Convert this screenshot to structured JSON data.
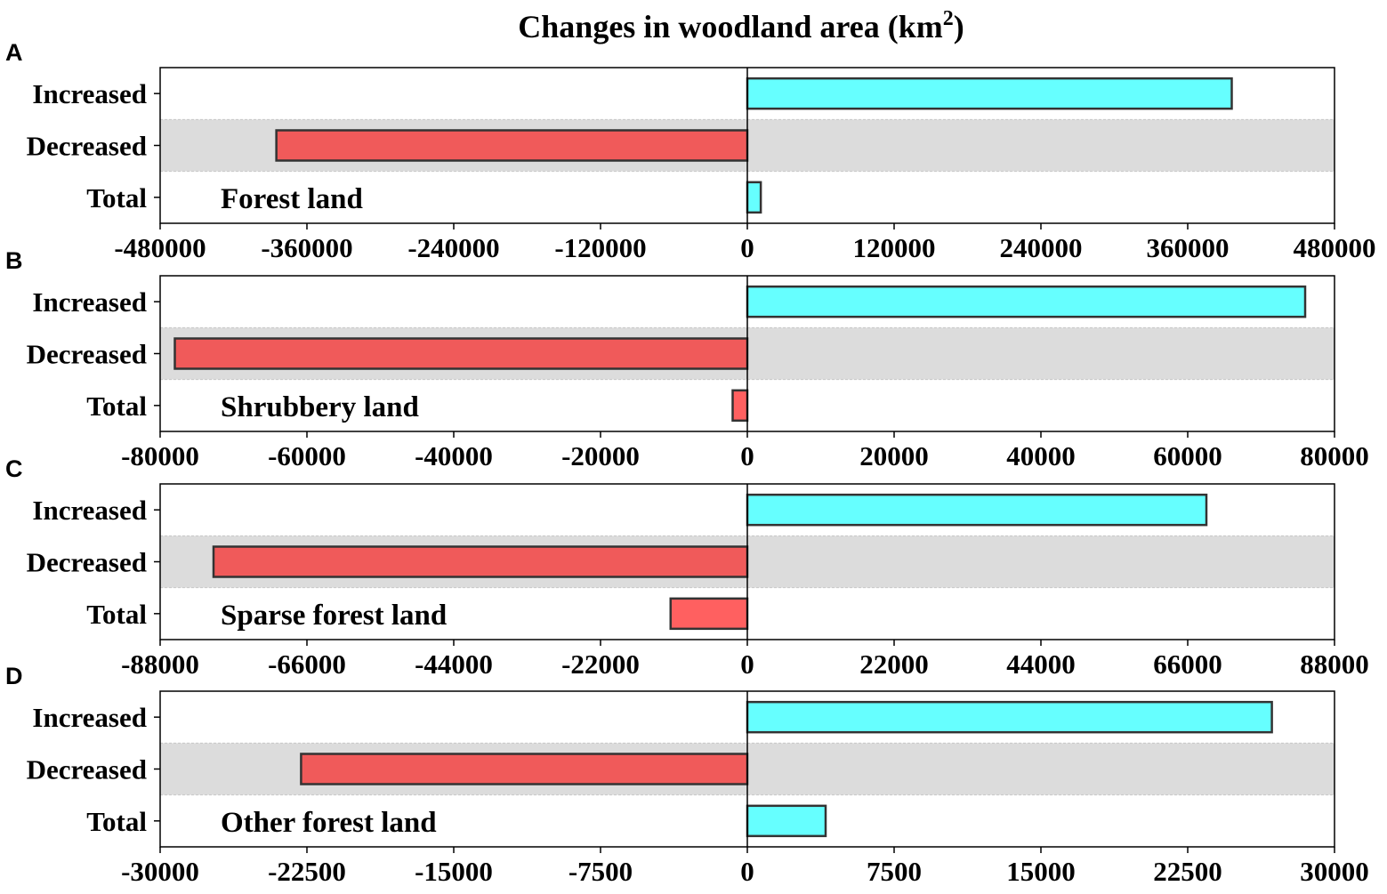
{
  "chart_data": {
    "title": "Changes in woodland area (km",
    "title_sup": "2",
    "title_close": ")",
    "type": "bar",
    "orientation": "horizontal",
    "grid": false,
    "colors": {
      "positive": "#66ffff",
      "negative": "#f05a5a",
      "negative_total": "#ff6060",
      "band": "#dcdcdc",
      "edge": "#333333"
    },
    "panels": [
      {
        "letter": "A",
        "name": "Forest land",
        "categories": [
          "Increased",
          "Decreased",
          "Total"
        ],
        "values": [
          396000,
          -385000,
          11000
        ],
        "xlim": [
          -480000,
          480000
        ],
        "ticks": [
          -480000,
          -360000,
          -240000,
          -120000,
          0,
          120000,
          240000,
          360000,
          480000
        ],
        "tick_labels": [
          "-480000",
          "-360000",
          "-240000",
          "-120000",
          "0",
          "120000",
          "240000",
          "360000",
          "480000"
        ]
      },
      {
        "letter": "B",
        "name": "Shrubbery land",
        "categories": [
          "Increased",
          "Decreased",
          "Total"
        ],
        "values": [
          76000,
          -78000,
          -2000
        ],
        "xlim": [
          -80000,
          80000
        ],
        "ticks": [
          -80000,
          -60000,
          -40000,
          -20000,
          0,
          20000,
          40000,
          60000,
          80000
        ],
        "tick_labels": [
          "-80000",
          "-60000",
          "-40000",
          "-20000",
          "0",
          "20000",
          "40000",
          "60000",
          "80000"
        ]
      },
      {
        "letter": "C",
        "name": "Sparse forest land",
        "categories": [
          "Increased",
          "Decreased",
          "Total"
        ],
        "values": [
          68800,
          -80000,
          -11500
        ],
        "xlim": [
          -88000,
          88000
        ],
        "ticks": [
          -88000,
          -66000,
          -44000,
          -22000,
          0,
          22000,
          44000,
          66000,
          88000
        ],
        "tick_labels": [
          "-88000",
          "-66000",
          "-44000",
          "-22000",
          "0",
          "22000",
          "44000",
          "66000",
          "88000"
        ]
      },
      {
        "letter": "D",
        "name": "Other forest land",
        "categories": [
          "Increased",
          "Decreased",
          "Total"
        ],
        "values": [
          26800,
          -22800,
          4000
        ],
        "xlim": [
          -30000,
          30000
        ],
        "ticks": [
          -30000,
          -22500,
          -15000,
          -7500,
          0,
          7500,
          15000,
          22500,
          30000
        ],
        "tick_labels": [
          "-30000",
          "-22500",
          "-15000",
          "-7500",
          "0",
          "7500",
          "15000",
          "22500",
          "30000"
        ]
      }
    ]
  }
}
